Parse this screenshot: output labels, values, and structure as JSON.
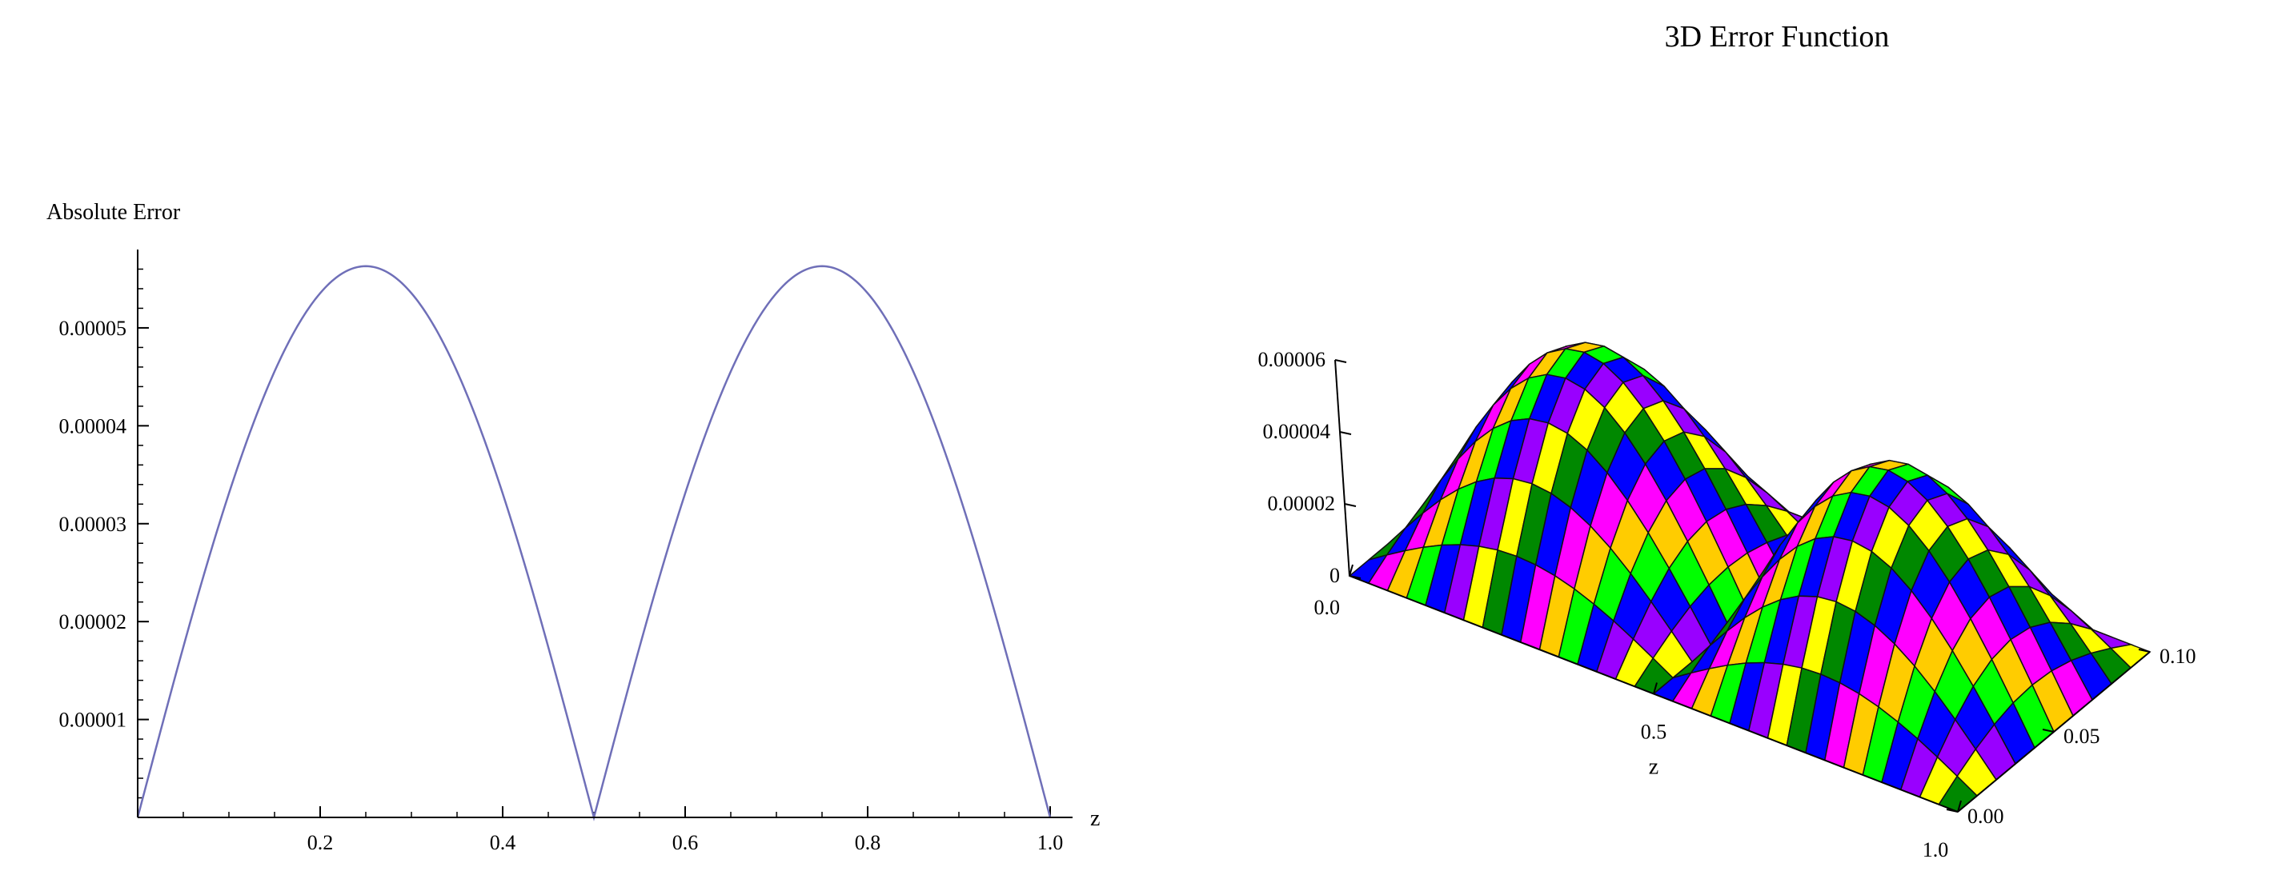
{
  "chart_data": [
    {
      "type": "line",
      "title": "",
      "ylabel": "Absolute Error",
      "xlabel": "z",
      "xlim": [
        0,
        1.0
      ],
      "ylim": [
        0,
        5.8e-05
      ],
      "x_ticks": [
        {
          "value": 0.2,
          "label": "0.2"
        },
        {
          "value": 0.4,
          "label": "0.4"
        },
        {
          "value": 0.6,
          "label": "0.6"
        },
        {
          "value": 0.8,
          "label": "0.8"
        },
        {
          "value": 1.0,
          "label": "1.0"
        }
      ],
      "y_ticks": [
        {
          "value": 1e-05,
          "label": "0.00001"
        },
        {
          "value": 2e-05,
          "label": "0.00002"
        },
        {
          "value": 3e-05,
          "label": "0.00003"
        },
        {
          "value": 4e-05,
          "label": "0.00004"
        },
        {
          "value": 5e-05,
          "label": "0.00005"
        }
      ],
      "series": [
        {
          "color": "#6f6fb8",
          "x": [
            0,
            0.05,
            0.1,
            0.15,
            0.2,
            0.25,
            0.3,
            0.35,
            0.4,
            0.45,
            0.5,
            0.55,
            0.6,
            0.65,
            0.7,
            0.75,
            0.8,
            0.85,
            0.9,
            0.95,
            1.0
          ],
          "y": [
            0,
            1.74e-05,
            3.31e-05,
            4.55e-05,
            5.35e-05,
            5.63e-05,
            5.35e-05,
            4.55e-05,
            3.31e-05,
            1.74e-05,
            0,
            1.74e-05,
            3.31e-05,
            4.55e-05,
            5.35e-05,
            5.63e-05,
            5.35e-05,
            4.55e-05,
            3.31e-05,
            1.74e-05,
            0
          ]
        }
      ],
      "grid": false,
      "legend": "none"
    },
    {
      "type": "surface",
      "title": "3D Error Function",
      "x_axis_label": "z",
      "x_ticks": [
        {
          "value": 0.0,
          "label": "0.0"
        },
        {
          "value": 0.5,
          "label": "0.5"
        },
        {
          "value": 1.0,
          "label": "1.0"
        }
      ],
      "t_ticks": [
        {
          "value": 0.0,
          "label": "0.00"
        },
        {
          "value": 0.05,
          "label": "0.05"
        },
        {
          "value": 0.1,
          "label": "0.10"
        }
      ],
      "z_ticks": [
        {
          "value": 0,
          "label": "0"
        },
        {
          "value": 2e-05,
          "label": "0.00002"
        },
        {
          "value": 4e-05,
          "label": "0.00004"
        },
        {
          "value": 6e-05,
          "label": "0.00006"
        }
      ],
      "xlim": [
        0,
        1.0
      ],
      "tlim": [
        0,
        0.1
      ],
      "zlim": [
        0,
        6e-05
      ],
      "peak_value": 5.63e-05,
      "grid_x": 16,
      "grid_t": 10,
      "palette": [
        "#0000ff",
        "#00ff00",
        "#ffff00",
        "#ff00ff",
        "#0000ff",
        "#008800",
        "#ffcc00",
        "#9900ff"
      ]
    }
  ]
}
